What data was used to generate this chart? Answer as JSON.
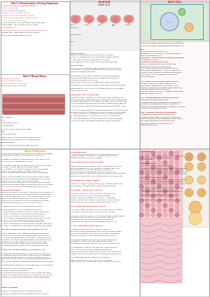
{
  "background_color": "#ffffff",
  "colors": {
    "red": "#cc0000",
    "blue": "#0000cc",
    "green": "#006600",
    "orange": "#ff8800",
    "purple": "#660066",
    "dark_red": "#990000",
    "light_blue": "#336699",
    "teal": "#006666",
    "pink": "#cc0066",
    "olive": "#666600",
    "gray": "#666666",
    "black": "#000000",
    "section_border": "#aaaaaa"
  }
}
